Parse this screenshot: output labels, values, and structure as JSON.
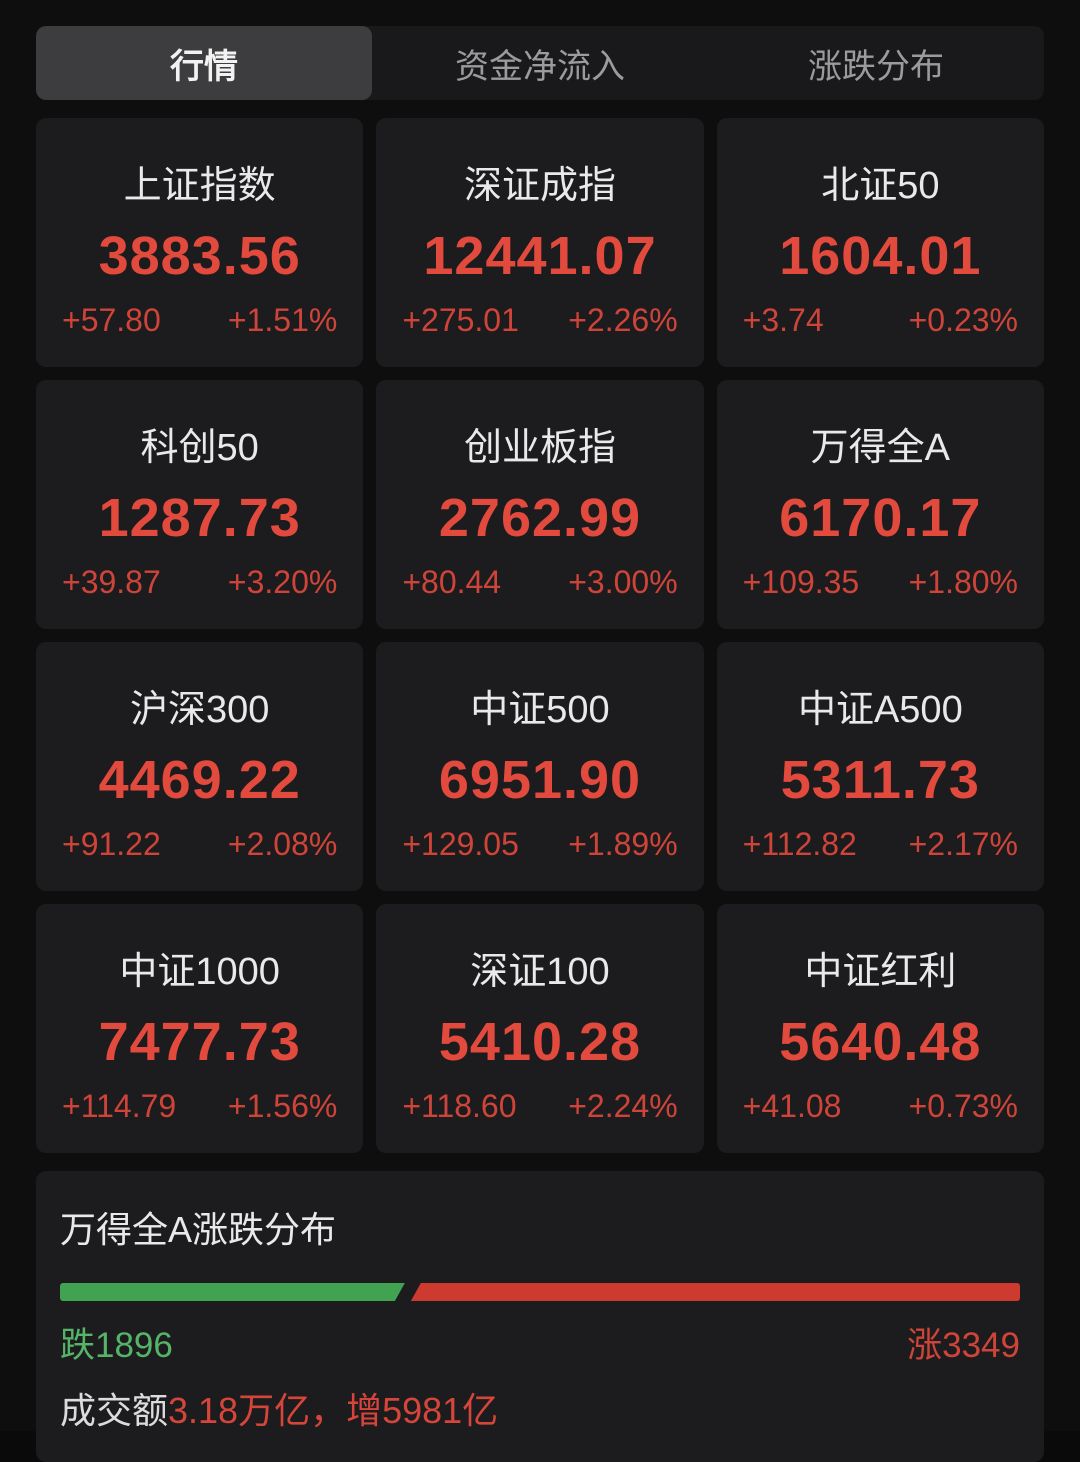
{
  "tabs": [
    {
      "id": "quotes",
      "label": "行情",
      "active": true
    },
    {
      "id": "net-inflow",
      "label": "资金净流入",
      "active": false
    },
    {
      "id": "breadth",
      "label": "涨跌分布",
      "active": false
    }
  ],
  "indices": [
    {
      "name": "上证指数",
      "value": "3883.56",
      "change": "+57.80",
      "change_pct": "+1.51%"
    },
    {
      "name": "深证成指",
      "value": "12441.07",
      "change": "+275.01",
      "change_pct": "+2.26%"
    },
    {
      "name": "北证50",
      "value": "1604.01",
      "change": "+3.74",
      "change_pct": "+0.23%"
    },
    {
      "name": "科创50",
      "value": "1287.73",
      "change": "+39.87",
      "change_pct": "+3.20%"
    },
    {
      "name": "创业板指",
      "value": "2762.99",
      "change": "+80.44",
      "change_pct": "+3.00%"
    },
    {
      "name": "万得全A",
      "value": "6170.17",
      "change": "+109.35",
      "change_pct": "+1.80%"
    },
    {
      "name": "沪深300",
      "value": "4469.22",
      "change": "+91.22",
      "change_pct": "+2.08%"
    },
    {
      "name": "中证500",
      "value": "6951.90",
      "change": "+129.05",
      "change_pct": "+1.89%"
    },
    {
      "name": "中证A500",
      "value": "5311.73",
      "change": "+112.82",
      "change_pct": "+2.17%"
    },
    {
      "name": "中证1000",
      "value": "7477.73",
      "change": "+114.79",
      "change_pct": "+1.56%"
    },
    {
      "name": "深证100",
      "value": "5410.28",
      "change": "+118.60",
      "change_pct": "+2.24%"
    },
    {
      "name": "中证红利",
      "value": "5640.48",
      "change": "+41.08",
      "change_pct": "+0.73%"
    }
  ],
  "breadth": {
    "title": "万得全A涨跌分布",
    "down_count": 1896,
    "up_count": 3349,
    "down_label": "跌1896",
    "up_label": "涨3349",
    "turnover_prefix": "成交额",
    "turnover_value": "3.18万亿，增5981亿"
  },
  "colors": {
    "up_red": "#e24a3d",
    "up_red_secondary": "#cf4439",
    "down_green": "#55b467",
    "bar_green": "#41a352",
    "bar_red": "#cc3a30",
    "card_bg": "#1c1c1e",
    "page_bg": "#0e0e0f",
    "active_tab_bg": "#3d3d40"
  }
}
